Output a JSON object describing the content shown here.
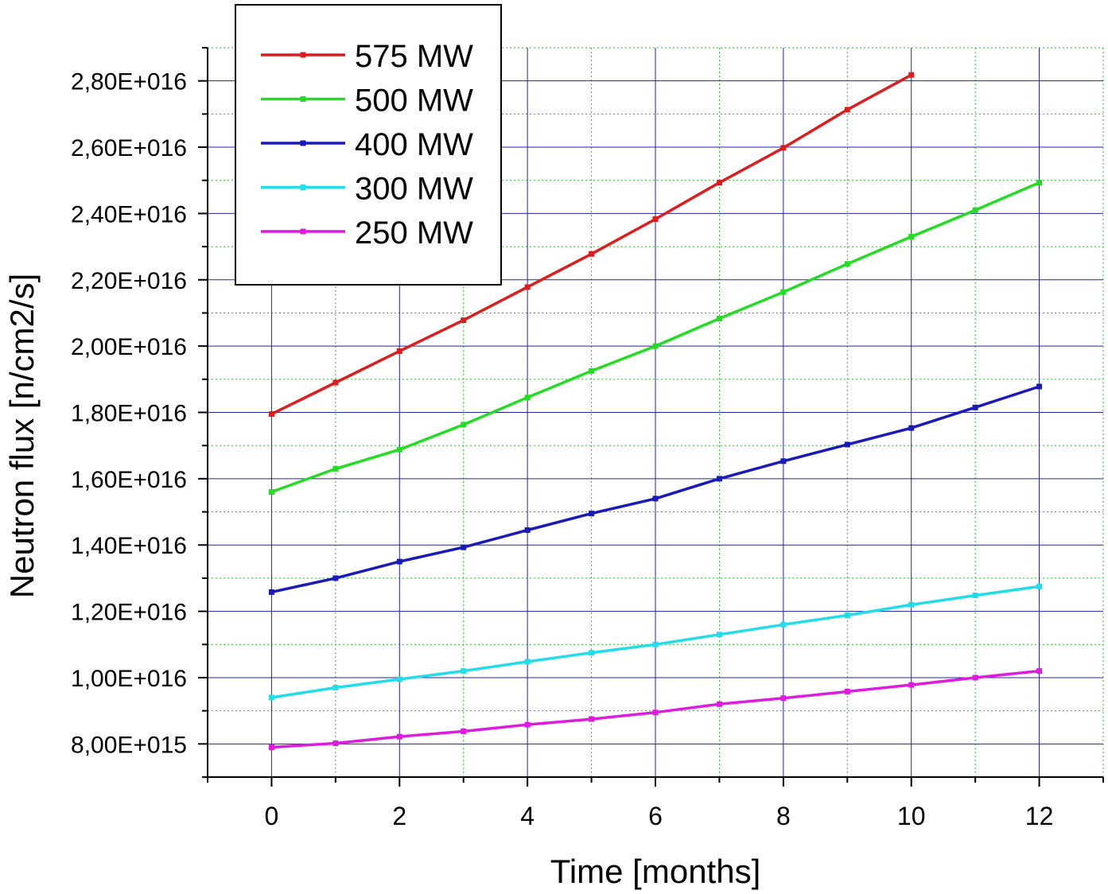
{
  "chart_data": {
    "type": "line",
    "xlabel": "Time [months]",
    "ylabel": "Neutron flux [n/cm2/s]",
    "xlim": [
      -1,
      13
    ],
    "ylim": [
      7000000000000000.0,
      2.9e+16
    ],
    "x_ticks": [
      0,
      2,
      4,
      6,
      8,
      10,
      12
    ],
    "x_tick_labels": [
      "0",
      "2",
      "4",
      "6",
      "8",
      "10",
      "12"
    ],
    "y_ticks": [
      8000000000000000.0,
      1e+16,
      1.2e+16,
      1.4e+16,
      1.6e+16,
      1.8e+16,
      2e+16,
      2.2e+16,
      2.4e+16,
      2.6e+16,
      2.8e+16
    ],
    "y_tick_labels": [
      "8,00E+015",
      "1,00E+016",
      "1,20E+016",
      "1,40E+016",
      "1,60E+016",
      "1,80E+016",
      "2,00E+016",
      "2,20E+016",
      "2,40E+016",
      "2,60E+016",
      "2,80E+016"
    ],
    "grid": true,
    "legend_position": "top-left",
    "series": [
      {
        "name": "575 MW",
        "color": "#dd1c1c",
        "x": [
          0,
          1,
          2,
          3,
          4,
          5,
          6,
          7,
          8,
          9,
          10
        ],
        "y": [
          1.795e+16,
          1.89e+16,
          1.985e+16,
          2.078e+16,
          2.178e+16,
          2.278e+16,
          2.383e+16,
          2.493e+16,
          2.598e+16,
          2.713e+16,
          2.818e+16
        ]
      },
      {
        "name": "500 MW",
        "color": "#22dd22",
        "x": [
          0,
          1,
          2,
          3,
          4,
          5,
          6,
          7,
          8,
          9,
          10,
          11,
          12
        ],
        "y": [
          1.56e+16,
          1.63e+16,
          1.688e+16,
          1.763e+16,
          1.845e+16,
          1.925e+16,
          2e+16,
          2.083e+16,
          2.163e+16,
          2.248e+16,
          2.33e+16,
          2.41e+16,
          2.493e+16
        ]
      },
      {
        "name": "400 MW",
        "color": "#1a1ab8",
        "x": [
          0,
          1,
          2,
          3,
          4,
          5,
          6,
          7,
          8,
          9,
          10,
          11,
          12
        ],
        "y": [
          1.258e+16,
          1.3e+16,
          1.35e+16,
          1.393e+16,
          1.445e+16,
          1.495e+16,
          1.54e+16,
          1.6e+16,
          1.653e+16,
          1.703e+16,
          1.753e+16,
          1.815e+16,
          1.878e+16
        ]
      },
      {
        "name": "300 MW",
        "color": "#22dde8",
        "x": [
          0,
          1,
          2,
          3,
          4,
          5,
          6,
          7,
          8,
          9,
          10,
          11,
          12
        ],
        "y": [
          9400000000000000.0,
          9700000000000000.0,
          9950000000000000.0,
          1.02e+16,
          1.048e+16,
          1.075e+16,
          1.1e+16,
          1.13e+16,
          1.16e+16,
          1.188e+16,
          1.22e+16,
          1.248e+16,
          1.275e+16
        ]
      },
      {
        "name": "250 MW",
        "color": "#dd1cdd",
        "x": [
          0,
          1,
          2,
          3,
          4,
          5,
          6,
          7,
          8,
          9,
          10,
          11,
          12
        ],
        "y": [
          7900000000000000.0,
          8020000000000000.0,
          8220000000000000.0,
          8380000000000000.0,
          8580000000000000.0,
          8750000000000000.0,
          8950000000000000.0,
          9200000000000000.0,
          9380000000000000.0,
          9580000000000000.0,
          9780000000000000.0,
          1e+16,
          1.02e+16
        ]
      }
    ]
  }
}
